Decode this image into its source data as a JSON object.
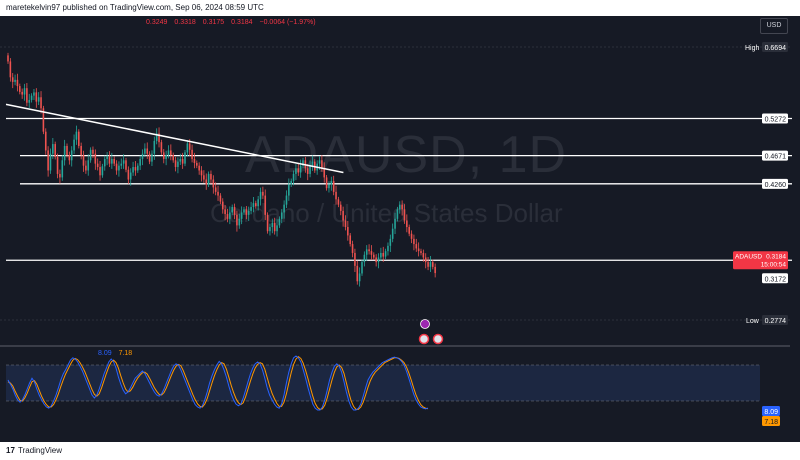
{
  "header": {
    "published_by": "maretekelvin97 published on TradingView.com, Sep 06, 2024 08:59 UTC",
    "currency": "USD"
  },
  "ohlc": {
    "open": "0.3249",
    "high": "0.3318",
    "low": "0.3175",
    "close": "0.3184",
    "change": "−0.0064 (−1.97%)"
  },
  "watermark": {
    "symbol_tf": "ADAUSD, 1D",
    "description": "Cardano / United States Dollar"
  },
  "footer": {
    "brand": "TradingView"
  },
  "colors": {
    "up": "#26a69a",
    "down": "#ef5350",
    "background": "#161a25",
    "stoch_k": "#2962ff",
    "stoch_d": "#ff9800",
    "stoch_band": "#1e2b48",
    "price_tag": "#f23645"
  },
  "chart_data": [
    {
      "type": "candlestick",
      "symbol": "ADAUSD",
      "timeframe": "1D",
      "ylim": [
        0.24,
        0.72
      ],
      "y_scale": "log",
      "high": {
        "label": "High",
        "value": 0.6694
      },
      "low": {
        "label": "Low",
        "value": 0.2774
      },
      "last_price": {
        "symbol": "ADAUSD",
        "value": 0.3184,
        "countdown": "15:00:54"
      },
      "horizontal_levels": [
        0.5272,
        0.4671,
        0.426,
        0.3172
      ],
      "horizontal_level_labels": [
        "0.5272",
        "0.4671",
        "0.4260",
        "0.3172"
      ],
      "trendline": {
        "start": [
          0,
          0.552
        ],
        "end": [
          140,
          0.442
        ]
      },
      "closes": [
        0.635,
        0.603,
        0.594,
        0.598,
        0.586,
        0.575,
        0.57,
        0.582,
        0.555,
        0.56,
        0.568,
        0.574,
        0.557,
        0.565,
        0.545,
        0.505,
        0.475,
        0.445,
        0.47,
        0.485,
        0.465,
        0.44,
        0.435,
        0.46,
        0.482,
        0.468,
        0.46,
        0.475,
        0.492,
        0.505,
        0.482,
        0.468,
        0.452,
        0.445,
        0.46,
        0.476,
        0.47,
        0.455,
        0.45,
        0.438,
        0.451,
        0.462,
        0.466,
        0.455,
        0.462,
        0.455,
        0.445,
        0.452,
        0.455,
        0.46,
        0.446,
        0.432,
        0.442,
        0.45,
        0.445,
        0.452,
        0.462,
        0.47,
        0.478,
        0.47,
        0.458,
        0.47,
        0.49,
        0.502,
        0.488,
        0.472,
        0.462,
        0.468,
        0.475,
        0.468,
        0.46,
        0.45,
        0.458,
        0.462,
        0.455,
        0.472,
        0.486,
        0.476,
        0.462,
        0.456,
        0.452,
        0.445,
        0.438,
        0.432,
        0.425,
        0.44,
        0.432,
        0.421,
        0.415,
        0.41,
        0.402,
        0.392,
        0.386,
        0.38,
        0.388,
        0.395,
        0.385,
        0.372,
        0.38,
        0.388,
        0.392,
        0.385,
        0.39,
        0.395,
        0.4,
        0.396,
        0.405,
        0.415,
        0.41,
        0.385,
        0.365,
        0.37,
        0.375,
        0.365,
        0.372,
        0.38,
        0.388,
        0.398,
        0.41,
        0.425,
        0.43,
        0.44,
        0.448,
        0.442,
        0.452,
        0.46,
        0.448,
        0.44,
        0.452,
        0.458,
        0.445,
        0.455,
        0.46,
        0.448,
        0.435,
        0.42,
        0.425,
        0.43,
        0.415,
        0.405,
        0.398,
        0.39,
        0.378,
        0.37,
        0.36,
        0.35,
        0.34,
        0.326,
        0.31,
        0.318,
        0.33,
        0.338,
        0.344,
        0.342,
        0.338,
        0.335,
        0.33,
        0.335,
        0.34,
        0.336,
        0.342,
        0.348,
        0.356,
        0.368,
        0.38,
        0.392,
        0.398,
        0.392,
        0.378,
        0.37,
        0.362,
        0.356,
        0.35,
        0.345,
        0.342,
        0.34,
        0.335,
        0.33,
        0.325,
        0.33,
        0.3249,
        0.3184
      ]
    },
    {
      "type": "line",
      "name": "Stochastic RSI",
      "ylim": [
        0,
        100
      ],
      "bands": [
        20,
        80
      ],
      "series": [
        {
          "name": "K",
          "value_label": "8.09"
        },
        {
          "name": "D",
          "value_label": "7.18"
        }
      ],
      "k": [
        55,
        48,
        40,
        30,
        22,
        18,
        22,
        30,
        40,
        50,
        58,
        52,
        40,
        30,
        22,
        15,
        10,
        8,
        12,
        20,
        30,
        42,
        55,
        65,
        72,
        80,
        88,
        92,
        90,
        85,
        78,
        70,
        60,
        50,
        40,
        30,
        25,
        30,
        40,
        52,
        65,
        75,
        85,
        90,
        85,
        75,
        60,
        48,
        38,
        32,
        35,
        42,
        50,
        58,
        62,
        66,
        70,
        66,
        58,
        50,
        42,
        35,
        30,
        28,
        32,
        40,
        50,
        60,
        70,
        78,
        82,
        80,
        72,
        62,
        52,
        42,
        32,
        22,
        14,
        10,
        8,
        12,
        22,
        35,
        50,
        62,
        72,
        80,
        86,
        82,
        72,
        60,
        45,
        32,
        22,
        15,
        12,
        15,
        25,
        38,
        52,
        65,
        75,
        82,
        85,
        82,
        72,
        58,
        42,
        30,
        22,
        15,
        10,
        8,
        15,
        30,
        50,
        68,
        82,
        92,
        95,
        92,
        85,
        72,
        58,
        42,
        28,
        15,
        8,
        5,
        5,
        10,
        22,
        38,
        55,
        68,
        78,
        82,
        78,
        68,
        52,
        35,
        20,
        10,
        5,
        5,
        8,
        15,
        28,
        42,
        55,
        62,
        68,
        72,
        76,
        80,
        84,
        86,
        88,
        90,
        92,
        93,
        92,
        90,
        86,
        80,
        70,
        58,
        45,
        32,
        22,
        15,
        10,
        8,
        7,
        8.09
      ],
      "d": [
        52,
        50,
        45,
        36,
        28,
        21,
        20,
        25,
        33,
        43,
        52,
        54,
        48,
        38,
        28,
        20,
        14,
        10,
        10,
        14,
        22,
        32,
        44,
        55,
        65,
        73,
        81,
        88,
        91,
        89,
        84,
        77,
        69,
        59,
        49,
        39,
        31,
        28,
        32,
        42,
        54,
        66,
        77,
        85,
        88,
        84,
        75,
        62,
        50,
        40,
        35,
        37,
        43,
        51,
        58,
        63,
        67,
        68,
        65,
        58,
        50,
        42,
        36,
        31,
        30,
        34,
        42,
        52,
        62,
        71,
        78,
        81,
        79,
        71,
        61,
        51,
        41,
        31,
        22,
        15,
        11,
        10,
        15,
        24,
        37,
        50,
        62,
        72,
        80,
        84,
        82,
        73,
        60,
        46,
        34,
        24,
        17,
        14,
        17,
        27,
        40,
        53,
        65,
        75,
        81,
        84,
        82,
        73,
        59,
        45,
        33,
        24,
        16,
        11,
        11,
        18,
        32,
        50,
        67,
        81,
        90,
        94,
        91,
        83,
        71,
        57,
        42,
        28,
        16,
        9,
        6,
        7,
        13,
        25,
        40,
        55,
        68,
        77,
        80,
        76,
        66,
        50,
        34,
        20,
        11,
        6,
        6,
        10,
        18,
        30,
        43,
        54,
        62,
        68,
        72,
        76,
        80,
        84,
        86,
        88,
        90,
        92,
        92,
        91,
        88,
        84,
        77,
        67,
        55,
        42,
        30,
        21,
        14,
        10,
        8,
        7.18
      ]
    }
  ]
}
